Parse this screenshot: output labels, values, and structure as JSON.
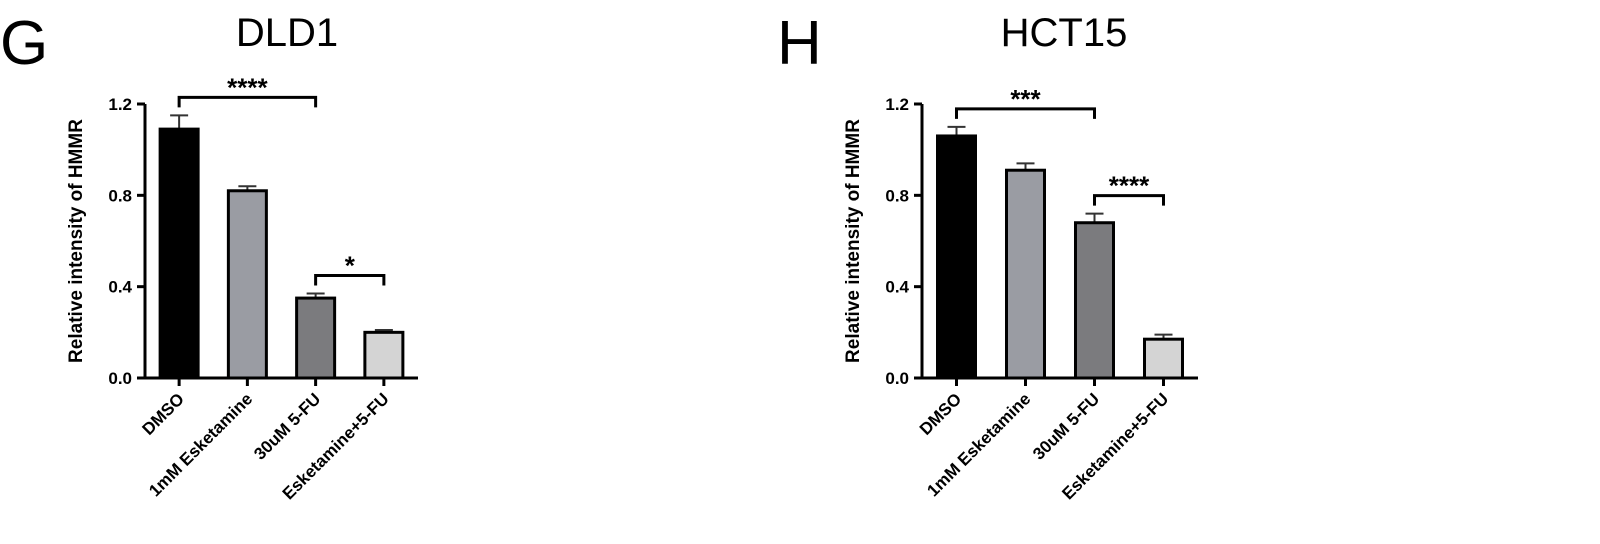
{
  "chart_data": [
    {
      "type": "bar",
      "label": "G",
      "title": "DLD1",
      "y_label": "Relative intensity of HMMR",
      "categories": [
        "DMSO",
        "1mM Esketamine",
        "30uM 5-FU",
        "Esketamine+5-FU"
      ],
      "values": [
        1.09,
        0.82,
        0.35,
        0.2
      ],
      "errors": [
        0.06,
        0.02,
        0.02,
        0.01
      ],
      "colors": [
        "#000000",
        "#9a9ca3",
        "#7b7b7e",
        "#d4d4d4"
      ],
      "ylim": [
        0,
        1.2
      ],
      "yticks": [
        {
          "value": 0,
          "label": "0.0"
        },
        {
          "value": 0.4,
          "label": "0.4"
        },
        {
          "value": 0.8,
          "label": "0.8"
        },
        {
          "value": 1.2,
          "label": "1.2"
        }
      ],
      "annotations": [
        {
          "text": "****",
          "from": "DMSO",
          "to": "30uM 5-FU"
        },
        {
          "text": "*",
          "from": "30uM 5-FU",
          "to": "Esketamine+5-FU"
        }
      ]
    },
    {
      "type": "bar",
      "label": "H",
      "title": "HCT15",
      "y_label": "Relative intensity of HMMR",
      "categories": [
        "DMSO",
        "1mM Esketamine",
        "30uM 5-FU",
        "Esketamine+5-FU"
      ],
      "values": [
        1.06,
        0.91,
        0.68,
        0.17
      ],
      "errors": [
        0.04,
        0.03,
        0.04,
        0.02
      ],
      "colors": [
        "#000000",
        "#9a9ca3",
        "#7b7b7e",
        "#d4d4d4"
      ],
      "ylim": [
        0,
        1.2
      ],
      "yticks": [
        {
          "value": 0,
          "label": "0.0"
        },
        {
          "value": 0.4,
          "label": "0.4"
        },
        {
          "value": 0.8,
          "label": "0.8"
        },
        {
          "value": 1.2,
          "label": "1.2"
        }
      ],
      "annotations": [
        {
          "text": "***",
          "from": "DMSO",
          "to": "30uM 5-FU"
        },
        {
          "text": "****",
          "from": "30uM 5-FU",
          "to": "Esketamine+5-FU"
        }
      ]
    }
  ]
}
